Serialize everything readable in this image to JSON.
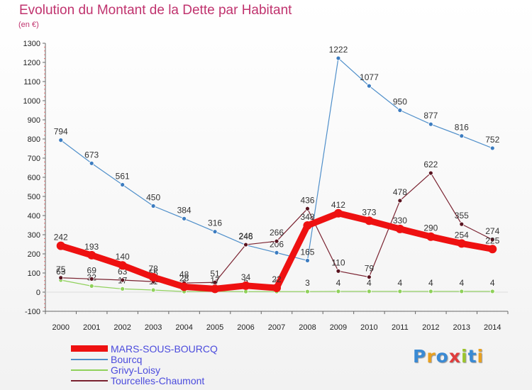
{
  "header": {
    "title": "Evolution du Montant de la Dette par Habitant",
    "unit": "(en €)"
  },
  "logo": {
    "text": "Proxiti",
    "colors": [
      "#3a8ad4",
      "#e8a020",
      "#3a8ad4",
      "#e03c3c",
      "#9bc52c",
      "#3a8ad4",
      "#e8a020"
    ]
  },
  "chart_data": {
    "type": "line",
    "title": "Evolution du Montant de la Dette par Habitant",
    "ylabel": "(en €)",
    "xlabel": "",
    "x": [
      "2000",
      "2001",
      "2002",
      "2003",
      "2004",
      "2005",
      "2006",
      "2007",
      "2008",
      "2009",
      "2010",
      "2011",
      "2012",
      "2013",
      "2014"
    ],
    "ylim": [
      -100,
      1300
    ],
    "yticks": [
      -100,
      0,
      100,
      200,
      300,
      400,
      500,
      600,
      700,
      800,
      900,
      1000,
      1100,
      1200,
      1300
    ],
    "grid": false,
    "legend": "bottom",
    "series": [
      {
        "name": "Bourcq",
        "color": "#4f8fca",
        "marker": "#3c7cc0",
        "width": 1.2,
        "values": [
          794,
          673,
          561,
          450,
          384,
          316,
          246,
          206,
          165,
          1222,
          1077,
          950,
          877,
          816,
          752
        ]
      },
      {
        "name": "Grivy-Loisy",
        "color": "#8fd15a",
        "marker": "#8fd15a",
        "width": 1.2,
        "values": [
          63,
          32,
          17,
          11,
          3,
          4,
          3,
          3,
          3,
          4,
          4,
          4,
          4,
          4,
          4
        ]
      },
      {
        "name": "Tourcelles-Chaumont",
        "color": "#7a2230",
        "marker": "#5a1420",
        "width": 1.2,
        "values": [
          75,
          69,
          63,
          55,
          48,
          51,
          248,
          266,
          436,
          110,
          79,
          478,
          622,
          355,
          274
        ]
      },
      {
        "name": "MARS-SOUS-BOURCQ",
        "color": "#ee1111",
        "marker": "#ee1111",
        "width": 9,
        "values": [
          242,
          193,
          140,
          78,
          28,
          17,
          34,
          22,
          348,
          412,
          373,
          330,
          290,
          254,
          225
        ]
      }
    ]
  }
}
